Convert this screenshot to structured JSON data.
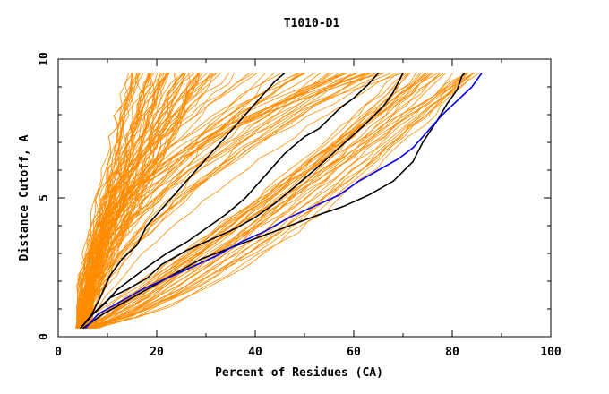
{
  "chart_data": {
    "type": "line",
    "title": "T1010-D1",
    "xlabel": "Percent of Residues (CA)",
    "ylabel": "Distance Cutoff, A",
    "xlim": [
      0,
      100
    ],
    "ylim": [
      0,
      10
    ],
    "x_ticks": [
      "0",
      "20",
      "40",
      "60",
      "80",
      "100"
    ],
    "y_ticks": [
      "0",
      "5",
      "10"
    ],
    "grid": false,
    "colors": {
      "bundle": "#ff8c00",
      "highlight": "#000000",
      "reference": "#0000ff"
    },
    "highlighted_series": [
      {
        "color": "black",
        "points": [
          [
            4.5,
            0.3
          ],
          [
            6.8,
            0.8
          ],
          [
            8.5,
            1.4
          ],
          [
            10.5,
            2.2
          ],
          [
            13,
            2.8
          ],
          [
            16,
            3.3
          ],
          [
            18,
            4.0
          ],
          [
            21,
            4.6
          ],
          [
            25,
            5.4
          ],
          [
            29,
            6.2
          ],
          [
            33,
            7.0
          ],
          [
            37,
            7.8
          ],
          [
            41,
            8.6
          ],
          [
            44,
            9.2
          ],
          [
            46,
            9.5
          ]
        ]
      },
      {
        "color": "black",
        "points": [
          [
            4.5,
            0.3
          ],
          [
            7,
            0.8
          ],
          [
            9.5,
            1.2
          ],
          [
            12,
            1.7
          ],
          [
            15,
            2.1
          ],
          [
            18,
            2.5
          ],
          [
            22,
            3.0
          ],
          [
            26,
            3.4
          ],
          [
            30,
            3.9
          ],
          [
            34,
            4.4
          ],
          [
            38,
            5.0
          ],
          [
            42,
            5.8
          ],
          [
            46,
            6.6
          ],
          [
            50,
            7.2
          ],
          [
            53,
            7.5
          ],
          [
            57,
            8.2
          ],
          [
            60,
            8.6
          ],
          [
            63,
            9.1
          ],
          [
            65,
            9.5
          ]
        ]
      },
      {
        "color": "black",
        "points": [
          [
            4.5,
            0.3
          ],
          [
            7.5,
            0.9
          ],
          [
            10.5,
            1.4
          ],
          [
            14,
            1.7
          ],
          [
            18,
            2.1
          ],
          [
            21,
            2.6
          ],
          [
            26,
            3.1
          ],
          [
            31,
            3.5
          ],
          [
            36,
            3.9
          ],
          [
            40,
            4.3
          ],
          [
            44,
            4.8
          ],
          [
            48,
            5.4
          ],
          [
            52,
            6.0
          ],
          [
            57,
            6.8
          ],
          [
            62,
            7.6
          ],
          [
            66,
            8.3
          ],
          [
            68,
            8.8
          ],
          [
            70,
            9.5
          ]
        ]
      },
      {
        "color": "black",
        "points": [
          [
            5,
            0.3
          ],
          [
            9,
            0.8
          ],
          [
            14,
            1.3
          ],
          [
            19,
            1.8
          ],
          [
            24,
            2.3
          ],
          [
            29,
            2.8
          ],
          [
            35,
            3.2
          ],
          [
            41,
            3.6
          ],
          [
            47,
            4.0
          ],
          [
            53,
            4.4
          ],
          [
            58,
            4.7
          ],
          [
            63,
            5.1
          ],
          [
            68,
            5.6
          ],
          [
            72,
            6.3
          ],
          [
            74,
            7.0
          ],
          [
            77,
            7.8
          ],
          [
            79,
            8.4
          ],
          [
            81,
            8.9
          ],
          [
            82,
            9.4
          ],
          [
            82.5,
            9.5
          ]
        ]
      },
      {
        "color": "blue",
        "points": [
          [
            5.5,
            0.3
          ],
          [
            8,
            0.8
          ],
          [
            12,
            1.2
          ],
          [
            17,
            1.7
          ],
          [
            22,
            2.1
          ],
          [
            27,
            2.5
          ],
          [
            32,
            2.9
          ],
          [
            37,
            3.4
          ],
          [
            42,
            3.8
          ],
          [
            47,
            4.3
          ],
          [
            52,
            4.7
          ],
          [
            57,
            5.1
          ],
          [
            61,
            5.6
          ],
          [
            65,
            6.0
          ],
          [
            69,
            6.4
          ],
          [
            72,
            6.8
          ],
          [
            75,
            7.4
          ],
          [
            78,
            8.0
          ],
          [
            81,
            8.5
          ],
          [
            84,
            9.0
          ],
          [
            86,
            9.5
          ]
        ]
      }
    ]
  }
}
